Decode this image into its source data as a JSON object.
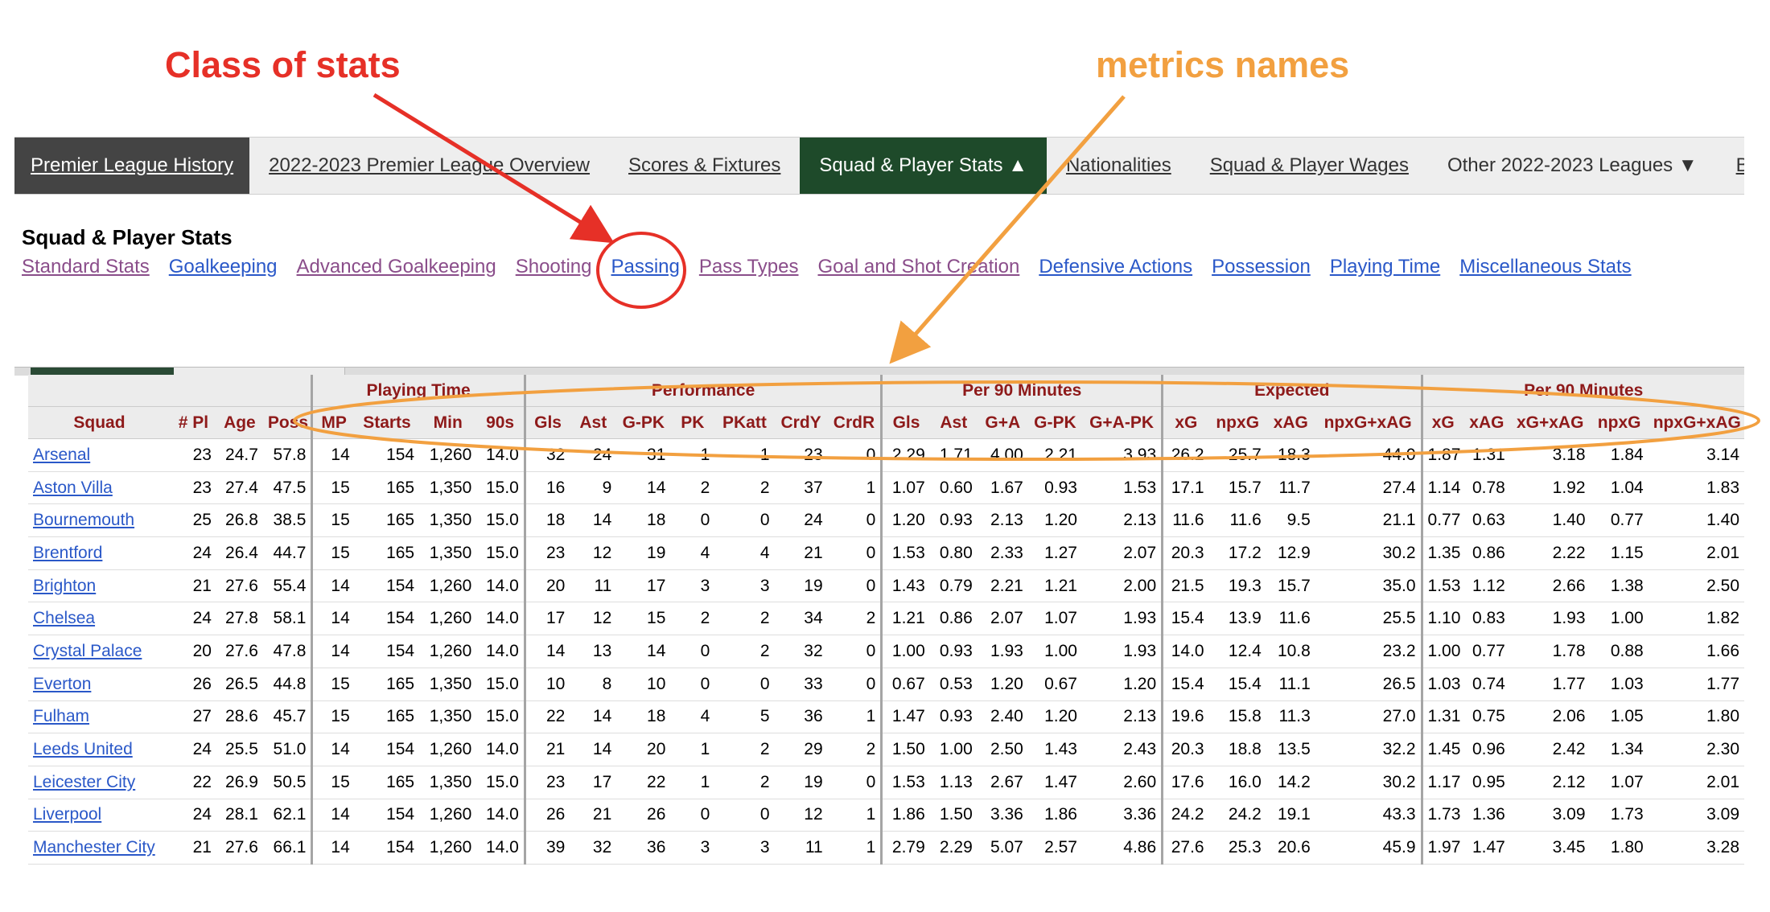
{
  "annotations": {
    "class_label": "Class of stats",
    "metrics_label": "metrics names"
  },
  "nav": {
    "items": [
      {
        "label": "Premier League History",
        "style": "dark"
      },
      {
        "label": "2022-2023 Premier League Overview",
        "style": "link"
      },
      {
        "label": "Scores & Fixtures",
        "style": "link"
      },
      {
        "label": "Squad & Player Stats ▲",
        "style": "active"
      },
      {
        "label": "Nationalities",
        "style": "link"
      },
      {
        "label": "Squad & Player Wages",
        "style": "link"
      },
      {
        "label": "Other 2022-2023 Leagues ▼",
        "style": "plain"
      },
      {
        "label": "Back to",
        "style": "link"
      }
    ]
  },
  "subsection": {
    "title": "Squad & Player Stats",
    "links": [
      {
        "label": "Standard Stats",
        "visited": true
      },
      {
        "label": "Goalkeeping",
        "visited": false
      },
      {
        "label": "Advanced Goalkeeping",
        "visited": true
      },
      {
        "label": "Shooting",
        "visited": true
      },
      {
        "label": "Passing",
        "visited": true
      },
      {
        "label": "Pass Types",
        "visited": true
      },
      {
        "label": "Goal and Shot Creation",
        "visited": true
      },
      {
        "label": "Defensive Actions",
        "visited": false
      },
      {
        "label": "Possession",
        "visited": false
      },
      {
        "label": "Playing Time",
        "visited": false
      },
      {
        "label": "Miscellaneous Stats",
        "visited": false
      }
    ]
  },
  "table": {
    "groups": [
      {
        "label": "",
        "span": 4
      },
      {
        "label": "Playing Time",
        "span": 4
      },
      {
        "label": "Performance",
        "span": 7
      },
      {
        "label": "Per 90 Minutes",
        "span": 5
      },
      {
        "label": "Expected",
        "span": 4
      },
      {
        "label": "Per 90 Minutes",
        "span": 5
      }
    ],
    "columns": [
      "Squad",
      "# Pl",
      "Age",
      "Poss",
      "MP",
      "Starts",
      "Min",
      "90s",
      "Gls",
      "Ast",
      "G-PK",
      "PK",
      "PKatt",
      "CrdY",
      "CrdR",
      "Gls",
      "Ast",
      "G+A",
      "G-PK",
      "G+A-PK",
      "xG",
      "npxG",
      "xAG",
      "npxG+xAG",
      "xG",
      "xAG",
      "xG+xAG",
      "npxG",
      "npxG+xAG"
    ],
    "rows": [
      [
        "Arsenal",
        "23",
        "24.7",
        "57.8",
        "14",
        "154",
        "1,260",
        "14.0",
        "32",
        "24",
        "31",
        "1",
        "1",
        "23",
        "0",
        "2.29",
        "1.71",
        "4.00",
        "2.21",
        "3.93",
        "26.2",
        "25.7",
        "18.3",
        "44.0",
        "1.87",
        "1.31",
        "3.18",
        "1.84",
        "3.14"
      ],
      [
        "Aston Villa",
        "23",
        "27.4",
        "47.5",
        "15",
        "165",
        "1,350",
        "15.0",
        "16",
        "9",
        "14",
        "2",
        "2",
        "37",
        "1",
        "1.07",
        "0.60",
        "1.67",
        "0.93",
        "1.53",
        "17.1",
        "15.7",
        "11.7",
        "27.4",
        "1.14",
        "0.78",
        "1.92",
        "1.04",
        "1.83"
      ],
      [
        "Bournemouth",
        "25",
        "26.8",
        "38.5",
        "15",
        "165",
        "1,350",
        "15.0",
        "18",
        "14",
        "18",
        "0",
        "0",
        "24",
        "0",
        "1.20",
        "0.93",
        "2.13",
        "1.20",
        "2.13",
        "11.6",
        "11.6",
        "9.5",
        "21.1",
        "0.77",
        "0.63",
        "1.40",
        "0.77",
        "1.40"
      ],
      [
        "Brentford",
        "24",
        "26.4",
        "44.7",
        "15",
        "165",
        "1,350",
        "15.0",
        "23",
        "12",
        "19",
        "4",
        "4",
        "21",
        "0",
        "1.53",
        "0.80",
        "2.33",
        "1.27",
        "2.07",
        "20.3",
        "17.2",
        "12.9",
        "30.2",
        "1.35",
        "0.86",
        "2.22",
        "1.15",
        "2.01"
      ],
      [
        "Brighton",
        "21",
        "27.6",
        "55.4",
        "14",
        "154",
        "1,260",
        "14.0",
        "20",
        "11",
        "17",
        "3",
        "3",
        "19",
        "0",
        "1.43",
        "0.79",
        "2.21",
        "1.21",
        "2.00",
        "21.5",
        "19.3",
        "15.7",
        "35.0",
        "1.53",
        "1.12",
        "2.66",
        "1.38",
        "2.50"
      ],
      [
        "Chelsea",
        "24",
        "27.8",
        "58.1",
        "14",
        "154",
        "1,260",
        "14.0",
        "17",
        "12",
        "15",
        "2",
        "2",
        "34",
        "2",
        "1.21",
        "0.86",
        "2.07",
        "1.07",
        "1.93",
        "15.4",
        "13.9",
        "11.6",
        "25.5",
        "1.10",
        "0.83",
        "1.93",
        "1.00",
        "1.82"
      ],
      [
        "Crystal Palace",
        "20",
        "27.6",
        "47.8",
        "14",
        "154",
        "1,260",
        "14.0",
        "14",
        "13",
        "14",
        "0",
        "2",
        "32",
        "0",
        "1.00",
        "0.93",
        "1.93",
        "1.00",
        "1.93",
        "14.0",
        "12.4",
        "10.8",
        "23.2",
        "1.00",
        "0.77",
        "1.78",
        "0.88",
        "1.66"
      ],
      [
        "Everton",
        "26",
        "26.5",
        "44.8",
        "15",
        "165",
        "1,350",
        "15.0",
        "10",
        "8",
        "10",
        "0",
        "0",
        "33",
        "0",
        "0.67",
        "0.53",
        "1.20",
        "0.67",
        "1.20",
        "15.4",
        "15.4",
        "11.1",
        "26.5",
        "1.03",
        "0.74",
        "1.77",
        "1.03",
        "1.77"
      ],
      [
        "Fulham",
        "27",
        "28.6",
        "45.7",
        "15",
        "165",
        "1,350",
        "15.0",
        "22",
        "14",
        "18",
        "4",
        "5",
        "36",
        "1",
        "1.47",
        "0.93",
        "2.40",
        "1.20",
        "2.13",
        "19.6",
        "15.8",
        "11.3",
        "27.0",
        "1.31",
        "0.75",
        "2.06",
        "1.05",
        "1.80"
      ],
      [
        "Leeds United",
        "24",
        "25.5",
        "51.0",
        "14",
        "154",
        "1,260",
        "14.0",
        "21",
        "14",
        "20",
        "1",
        "2",
        "29",
        "2",
        "1.50",
        "1.00",
        "2.50",
        "1.43",
        "2.43",
        "20.3",
        "18.8",
        "13.5",
        "32.2",
        "1.45",
        "0.96",
        "2.42",
        "1.34",
        "2.30"
      ],
      [
        "Leicester City",
        "22",
        "26.9",
        "50.5",
        "15",
        "165",
        "1,350",
        "15.0",
        "23",
        "17",
        "22",
        "1",
        "2",
        "19",
        "0",
        "1.53",
        "1.13",
        "2.67",
        "1.47",
        "2.60",
        "17.6",
        "16.0",
        "14.2",
        "30.2",
        "1.17",
        "0.95",
        "2.12",
        "1.07",
        "2.01"
      ],
      [
        "Liverpool",
        "24",
        "28.1",
        "62.1",
        "14",
        "154",
        "1,260",
        "14.0",
        "26",
        "21",
        "26",
        "0",
        "0",
        "12",
        "1",
        "1.86",
        "1.50",
        "3.36",
        "1.86",
        "3.36",
        "24.2",
        "24.2",
        "19.1",
        "43.3",
        "1.73",
        "1.36",
        "3.09",
        "1.73",
        "3.09"
      ],
      [
        "Manchester City",
        "21",
        "27.6",
        "66.1",
        "14",
        "154",
        "1,260",
        "14.0",
        "39",
        "32",
        "36",
        "3",
        "3",
        "11",
        "1",
        "2.79",
        "2.29",
        "5.07",
        "2.57",
        "4.86",
        "27.6",
        "25.3",
        "20.6",
        "45.9",
        "1.97",
        "1.47",
        "3.45",
        "1.80",
        "3.28"
      ]
    ]
  },
  "colors": {
    "red_annotation": "#e63027",
    "orange_annotation": "#f2a040",
    "header_text": "#8e1a1a",
    "link_blue": "#2a58c8",
    "link_visited": "#8a4d8a",
    "active_tab": "#1e4a2a"
  }
}
